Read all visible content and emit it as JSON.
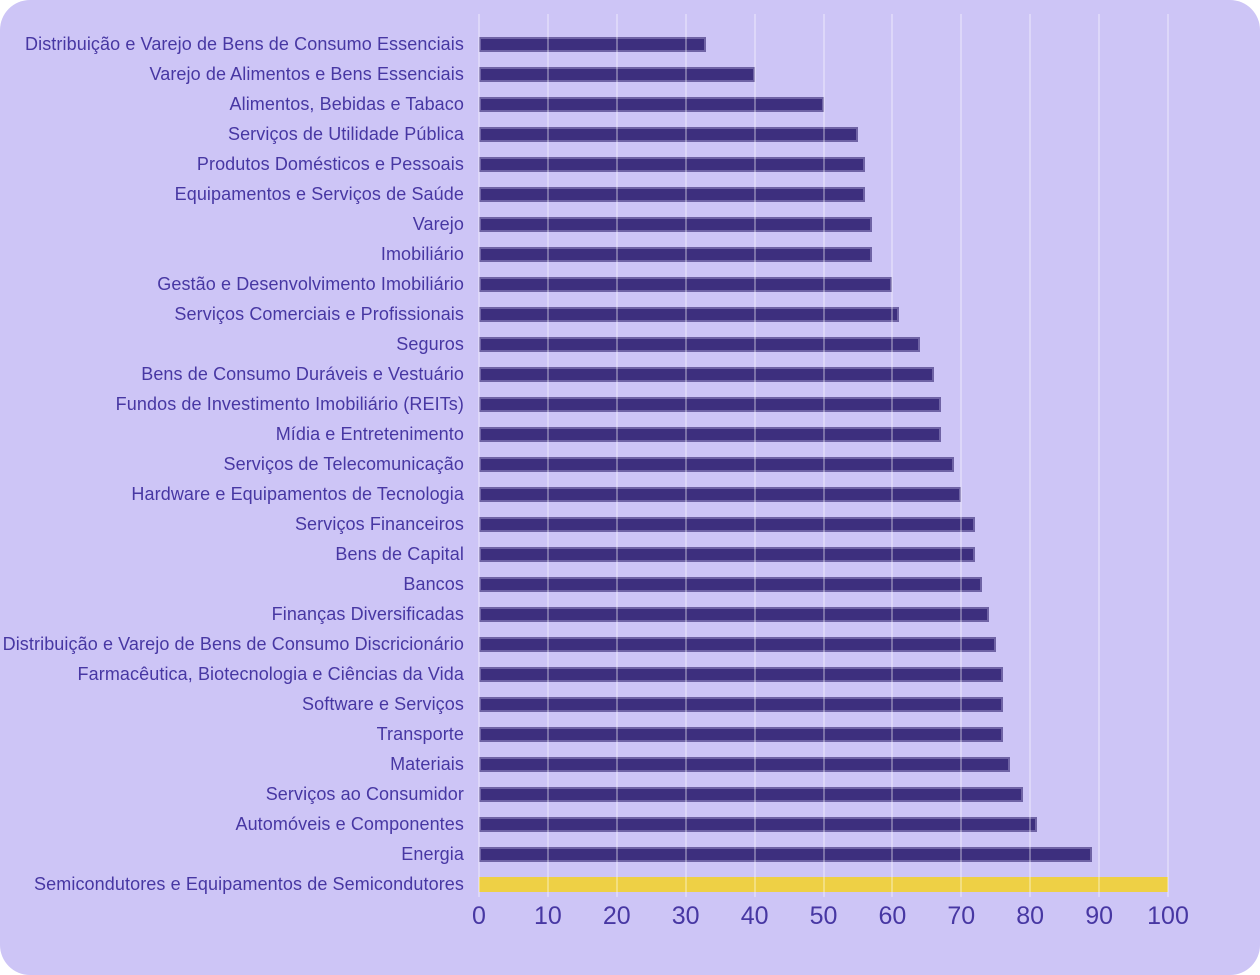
{
  "chart_data": {
    "type": "bar",
    "orientation": "horizontal",
    "title": "",
    "xlabel": "",
    "ylabel": "",
    "xlim": [
      0,
      100
    ],
    "x_ticks": [
      0,
      10,
      20,
      30,
      40,
      50,
      60,
      70,
      80,
      90,
      100
    ],
    "grid": "vertical",
    "legend": "none",
    "categories": [
      "Distribuição e Varejo de Bens de Consumo Essenciais",
      "Varejo de Alimentos e Bens Essenciais",
      "Alimentos, Bebidas e Tabaco",
      "Serviços de Utilidade Pública",
      "Produtos Domésticos e Pessoais",
      "Equipamentos e Serviços de Saúde",
      "Varejo",
      "Imobiliário",
      "Gestão e Desenvolvimento Imobiliário",
      "Serviços Comerciais e Profissionais",
      "Seguros",
      "Bens de Consumo Duráveis e Vestuário",
      "Fundos de Investimento Imobiliário (REITs)",
      "Mídia e Entretenimento",
      "Serviços de Telecomunicação",
      "Hardware e Equipamentos de Tecnologia",
      "Serviços Financeiros",
      "Bens de Capital",
      "Bancos",
      "Finanças Diversificadas",
      "Distribuição e Varejo de Bens de Consumo Discricionário",
      "Farmacêutica, Biotecnologia e Ciências da Vida",
      "Software e Serviços",
      "Transporte",
      "Materiais",
      "Serviços ao Consumidor",
      "Automóveis e Componentes",
      "Energia",
      "Semicondutores e Equipamentos de Semicondutores"
    ],
    "values": [
      33,
      40,
      50,
      55,
      56,
      56,
      57,
      57,
      60,
      61,
      64,
      66,
      67,
      67,
      69,
      70,
      72,
      72,
      73,
      74,
      75,
      76,
      76,
      76,
      77,
      79,
      81,
      89,
      100
    ],
    "highlight_index": 28,
    "colors": {
      "bar": "#3d2f7e",
      "highlight_bar": "#eed045",
      "panel_background": "#cdc5f6",
      "outer_background": "#ffffff",
      "text": "#4737a3",
      "gridline": "rgba(255,255,255,0.32)"
    }
  }
}
